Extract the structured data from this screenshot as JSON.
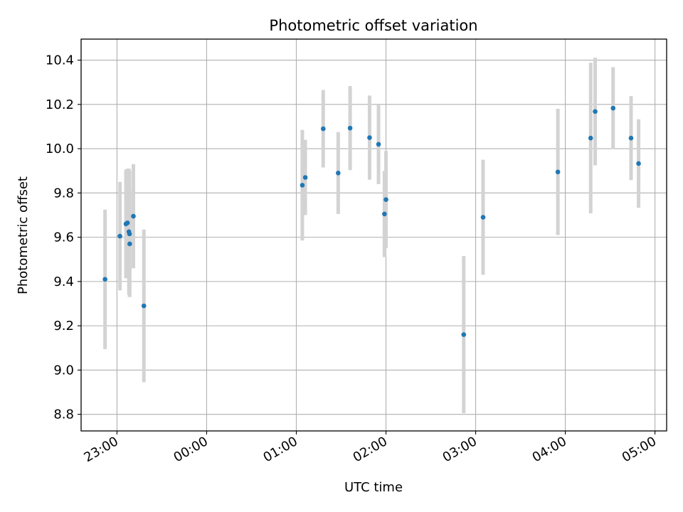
{
  "chart_data": {
    "type": "scatter",
    "title": "Photometric offset variation",
    "xlabel": "UTC time",
    "ylabel": "Photometric offset",
    "grid": true,
    "x_ticks": [
      {
        "hour": 23.0,
        "label": "23:00"
      },
      {
        "hour": 24.0,
        "label": "00:00"
      },
      {
        "hour": 25.0,
        "label": "01:00"
      },
      {
        "hour": 26.0,
        "label": "02:00"
      },
      {
        "hour": 27.0,
        "label": "03:00"
      },
      {
        "hour": 28.0,
        "label": "04:00"
      },
      {
        "hour": 29.0,
        "label": "05:00"
      }
    ],
    "y_ticks": [
      {
        "value": 8.8,
        "label": "8.8"
      },
      {
        "value": 9.0,
        "label": "9.0"
      },
      {
        "value": 9.2,
        "label": "9.2"
      },
      {
        "value": 9.4,
        "label": "9.4"
      },
      {
        "value": 9.6,
        "label": "9.6"
      },
      {
        "value": 9.8,
        "label": "9.8"
      },
      {
        "value": 10.0,
        "label": "10.0"
      },
      {
        "value": 10.2,
        "label": "10.2"
      },
      {
        "value": 10.4,
        "label": "10.4"
      }
    ],
    "xlim_hours": [
      22.6,
      29.13
    ],
    "ylim": [
      8.725,
      10.495
    ],
    "marker_color": "#1f77b4",
    "errorbar_color": "#d3d3d3",
    "points": [
      {
        "t": "22:52",
        "hour": 22.867,
        "y": 9.41,
        "err": 0.315
      },
      {
        "t": "23:02",
        "hour": 23.033,
        "y": 9.605,
        "err": 0.245
      },
      {
        "t": "23:06",
        "hour": 23.1,
        "y": 9.66,
        "err": 0.245
      },
      {
        "t": "23:07",
        "hour": 23.117,
        "y": 9.665,
        "err": 0.245
      },
      {
        "t": "23:08",
        "hour": 23.133,
        "y": 9.625,
        "err": 0.285
      },
      {
        "t": "23:08",
        "hour": 23.14,
        "y": 9.615,
        "err": 0.285
      },
      {
        "t": "23:08",
        "hour": 23.142,
        "y": 9.57,
        "err": 0.24
      },
      {
        "t": "23:11",
        "hour": 23.183,
        "y": 9.695,
        "err": 0.235
      },
      {
        "t": "23:18",
        "hour": 23.3,
        "y": 9.29,
        "err": 0.345
      },
      {
        "t": "01:04",
        "hour": 25.067,
        "y": 9.835,
        "err": 0.25
      },
      {
        "t": "01:06",
        "hour": 25.1,
        "y": 9.87,
        "err": 0.17
      },
      {
        "t": "01:18",
        "hour": 25.3,
        "y": 10.09,
        "err": 0.175
      },
      {
        "t": "01:28",
        "hour": 25.467,
        "y": 9.89,
        "err": 0.185
      },
      {
        "t": "01:36",
        "hour": 25.6,
        "y": 10.093,
        "err": 0.19
      },
      {
        "t": "01:49",
        "hour": 25.817,
        "y": 10.05,
        "err": 0.19
      },
      {
        "t": "01:55",
        "hour": 25.917,
        "y": 10.02,
        "err": 0.18
      },
      {
        "t": "01:59",
        "hour": 25.983,
        "y": 9.705,
        "err": 0.195
      },
      {
        "t": "02:00",
        "hour": 26.0,
        "y": 9.77,
        "err": 0.22
      },
      {
        "t": "02:52",
        "hour": 26.867,
        "y": 9.16,
        "err": 0.355
      },
      {
        "t": "03:05",
        "hour": 27.083,
        "y": 9.69,
        "err": 0.26
      },
      {
        "t": "03:55",
        "hour": 27.917,
        "y": 9.895,
        "err": 0.285
      },
      {
        "t": "04:17",
        "hour": 28.283,
        "y": 10.048,
        "err": 0.34
      },
      {
        "t": "04:20",
        "hour": 28.333,
        "y": 10.168,
        "err": 0.243
      },
      {
        "t": "04:32",
        "hour": 28.533,
        "y": 10.183,
        "err": 0.185
      },
      {
        "t": "04:44",
        "hour": 28.733,
        "y": 10.048,
        "err": 0.19
      },
      {
        "t": "04:49",
        "hour": 28.817,
        "y": 9.933,
        "err": 0.2
      }
    ]
  }
}
